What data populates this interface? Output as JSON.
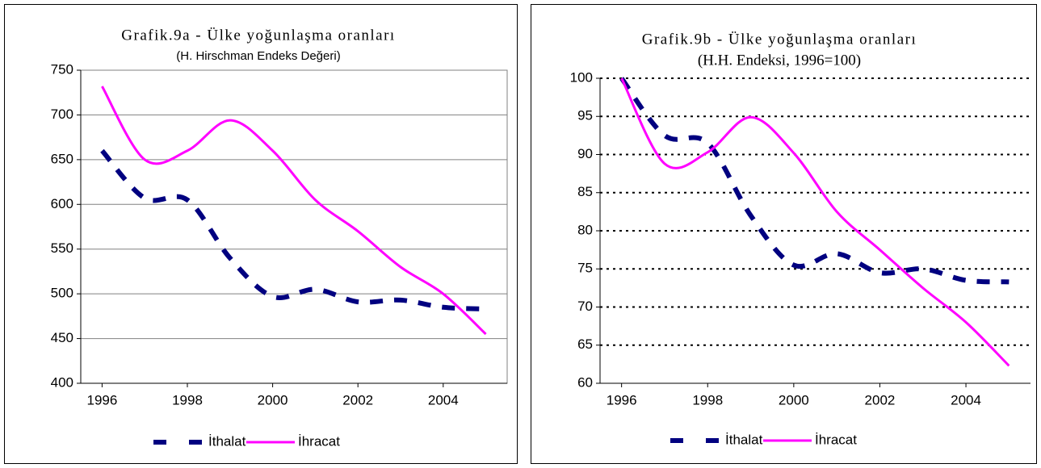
{
  "chart_data": [
    {
      "type": "line",
      "title": "Grafik.9a - Ülke yoğunlaşma oranları",
      "subtitle": "(H. Hirschman Endeks Değeri)",
      "x": [
        1996,
        1997,
        1998,
        1999,
        2000,
        2001,
        2002,
        2003,
        2004,
        2005
      ],
      "xlim": [
        1995.5,
        2005.5
      ],
      "xticks": [
        1996,
        1998,
        2000,
        2002,
        2004
      ],
      "ylim": [
        400,
        750
      ],
      "yticks": [
        400,
        450,
        500,
        550,
        600,
        650,
        700,
        750
      ],
      "grid": true,
      "grid_style": "solid",
      "legend": "bottom",
      "series": [
        {
          "name": "İthalat",
          "color": "#000080",
          "dashed": true,
          "values": [
            660,
            607,
            605,
            540,
            497,
            505,
            491,
            493,
            485,
            483
          ]
        },
        {
          "name": "İhracat",
          "color": "#ff00ff",
          "dashed": false,
          "values": [
            732,
            650,
            660,
            694,
            660,
            605,
            570,
            530,
            500,
            455
          ]
        }
      ]
    },
    {
      "type": "line",
      "title": "Grafik.9b - Ülke yoğunlaşma oranları",
      "subtitle": "(H.H. Endeksi, 1996=100)",
      "x": [
        1996,
        1997,
        1998,
        1999,
        2000,
        2001,
        2002,
        2003,
        2004,
        2005
      ],
      "xlim": [
        1995.5,
        2005.5
      ],
      "xticks": [
        1996,
        1998,
        2000,
        2002,
        2004
      ],
      "ylim": [
        60,
        100
      ],
      "yticks": [
        60,
        65,
        70,
        75,
        80,
        85,
        90,
        95,
        100
      ],
      "grid": true,
      "grid_style": "dotted",
      "legend": "bottom",
      "series": [
        {
          "name": "İthalat",
          "color": "#000080",
          "dashed": true,
          "values": [
            100,
            92.5,
            91.5,
            82,
            75.5,
            77,
            74.5,
            75,
            73.5,
            73.3
          ]
        },
        {
          "name": "İhracat",
          "color": "#ff00ff",
          "dashed": false,
          "values": [
            100,
            88.8,
            90.3,
            94.9,
            90.2,
            82.5,
            77.5,
            72.5,
            68,
            62.3
          ]
        }
      ]
    }
  ]
}
